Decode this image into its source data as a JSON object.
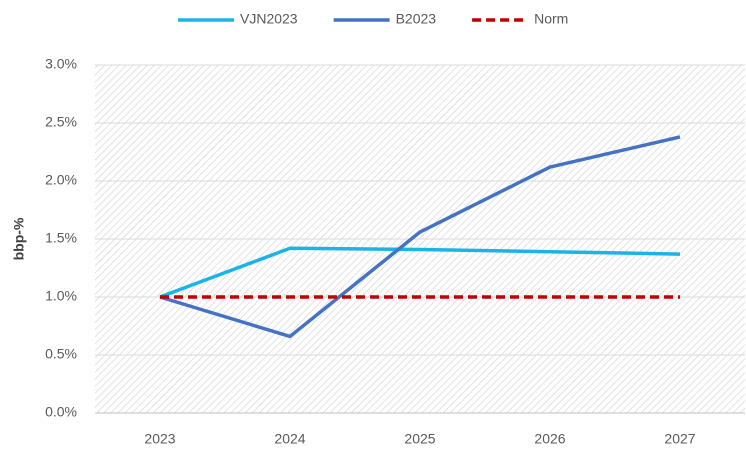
{
  "chart_data": {
    "type": "line",
    "y_label": "bbp-%",
    "categories": [
      "2023",
      "2024",
      "2025",
      "2026",
      "2027"
    ],
    "series": [
      {
        "name": "VJN2023",
        "color": "#1cb4e8",
        "line_style": "solid",
        "values": [
          1.0,
          1.42,
          1.41,
          1.39,
          1.37
        ]
      },
      {
        "name": "B2023",
        "color": "#4472c4",
        "line_style": "solid",
        "values": [
          1.0,
          0.66,
          1.56,
          2.12,
          2.38
        ]
      },
      {
        "name": "Norm",
        "color": "#c00000",
        "line_style": "dashed",
        "values": [
          1.0,
          1.0,
          1.0,
          1.0,
          1.0
        ]
      }
    ],
    "ylim": [
      0,
      3
    ],
    "yticks": [
      {
        "value": 0,
        "label": "0.0%"
      },
      {
        "value": 0.5,
        "label": "0.5%"
      },
      {
        "value": 1,
        "label": "1.0%"
      },
      {
        "value": 1.5,
        "label": "1.5%"
      },
      {
        "value": 2,
        "label": "2.0%"
      },
      {
        "value": 2.5,
        "label": "2.5%"
      },
      {
        "value": 3,
        "label": "3.0%"
      }
    ],
    "grid": true,
    "legend": "top"
  }
}
